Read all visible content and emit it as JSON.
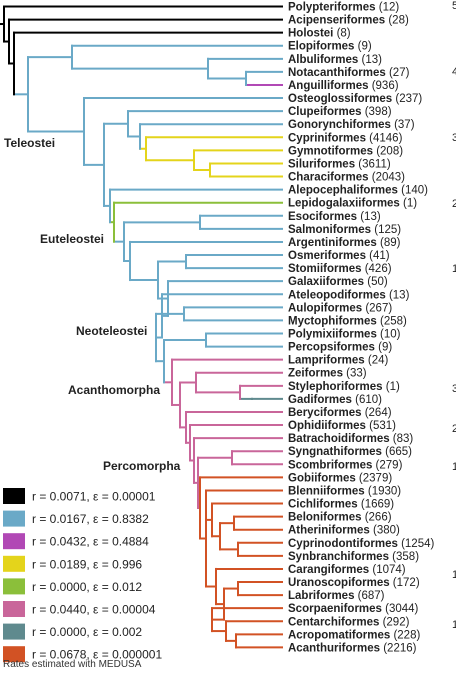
{
  "colors": {
    "black": "#000000",
    "blue": "#6aa9c7",
    "magenta": "#b148b5",
    "yellow": "#e4d41b",
    "green": "#8bbf3a",
    "pink": "#c9669a",
    "gray": "#5f8a8e",
    "orange": "#d25224"
  },
  "legend": [
    {
      "label": "r = 0.0071, ε = 0.00001",
      "color": "#000000"
    },
    {
      "label": "r = 0.0167, ε = 0.8382",
      "color": "#6aa9c7"
    },
    {
      "label": "r = 0.0432, ε = 0.4884",
      "color": "#b148b5"
    },
    {
      "label": "r = 0.0189, ε = 0.996",
      "color": "#e4d41b"
    },
    {
      "label": "r = 0.0000, ε = 0.012",
      "color": "#8bbf3a"
    },
    {
      "label": "r = 0.0440, ε = 0.00004",
      "color": "#c9669a"
    },
    {
      "label": "r = 0.0000, ε = 0.002",
      "color": "#5f8a8e"
    },
    {
      "label": "r = 0.0678, ε = 0.000001",
      "color": "#d25224"
    }
  ],
  "caption": "Rates estimated with MEDUSA",
  "clades": {
    "teleostei": "Teleostei",
    "euteleostei": "Euteleostei",
    "neoteleostei": "Neoteleostei",
    "acanthomorpha": "Acanthomorpha",
    "percomorpha": "Percomorpha"
  },
  "edge_marks": [
    "5",
    "4",
    "3",
    "2",
    "1",
    "3",
    "2",
    "1",
    "1",
    "1"
  ],
  "taxa": [
    {
      "name": "Polypteriformes",
      "count": "(12)"
    },
    {
      "name": "Acipenseriformes",
      "count": "(28)"
    },
    {
      "name": "Holostei",
      "count": "(8)"
    },
    {
      "name": "Elopiformes",
      "count": "(9)"
    },
    {
      "name": "Albuliformes",
      "count": "(13)"
    },
    {
      "name": "Notacanthiformes",
      "count": "(27)"
    },
    {
      "name": "Anguilliformes",
      "count": "(936)"
    },
    {
      "name": "Osteoglossiformes",
      "count": "(237)"
    },
    {
      "name": "Clupeiformes",
      "count": "(398)"
    },
    {
      "name": "Gonorynchiformes",
      "count": "(37)"
    },
    {
      "name": "Cypriniformes",
      "count": "(4146)"
    },
    {
      "name": "Gymnotiformes",
      "count": "(208)"
    },
    {
      "name": "Siluriformes",
      "count": "(3611)"
    },
    {
      "name": "Characiformes",
      "count": "(2043)"
    },
    {
      "name": "Alepocephaliformes",
      "count": "(140)"
    },
    {
      "name": "Lepidogalaxiiformes",
      "count": "(1)"
    },
    {
      "name": "Esociformes",
      "count": "(13)"
    },
    {
      "name": "Salmoniformes",
      "count": "(125)"
    },
    {
      "name": "Argentiniformes",
      "count": "(89)"
    },
    {
      "name": "Osmeriformes",
      "count": "(41)"
    },
    {
      "name": "Stomiiformes",
      "count": "(426)"
    },
    {
      "name": "Galaxiiformes",
      "count": "(50)"
    },
    {
      "name": "Ateleopodiformes",
      "count": "(13)"
    },
    {
      "name": "Aulopiformes",
      "count": "(267)"
    },
    {
      "name": "Myctophiformes",
      "count": "(258)"
    },
    {
      "name": "Polymixiiformes",
      "count": "(10)"
    },
    {
      "name": "Percopsiformes",
      "count": "(9)"
    },
    {
      "name": "Lampriformes",
      "count": "(24)"
    },
    {
      "name": "Zeiformes",
      "count": "(33)"
    },
    {
      "name": "Stylephoriformes",
      "count": "(1)"
    },
    {
      "name": "Gadiformes",
      "count": "(610)"
    },
    {
      "name": "Beryciformes",
      "count": "(264)"
    },
    {
      "name": "Ophidiiformes",
      "count": "(531)"
    },
    {
      "name": "Batrachoidiformes",
      "count": "(83)"
    },
    {
      "name": "Syngnathiformes",
      "count": "(665)"
    },
    {
      "name": "Scombriformes",
      "count": "(279)"
    },
    {
      "name": "Gobiiformes",
      "count": "(2379)"
    },
    {
      "name": "Blenniiformes",
      "count": "(1930)"
    },
    {
      "name": "Cichliformes",
      "count": "(1669)"
    },
    {
      "name": "Beloniformes",
      "count": "(266)"
    },
    {
      "name": "Atheriniformes",
      "count": "(380)"
    },
    {
      "name": "Cyprinodontiformes",
      "count": "(1254)"
    },
    {
      "name": "Synbranchiformes",
      "count": "(358)"
    },
    {
      "name": "Carangiformes",
      "count": "(1074)"
    },
    {
      "name": "Uranoscopiformes",
      "count": "(172)"
    },
    {
      "name": "Labriformes",
      "count": "(687)"
    },
    {
      "name": "Scorpaeniformes",
      "count": "(3044)"
    },
    {
      "name": "Centarchiformes",
      "count": "(292)"
    },
    {
      "name": "Acropomatiformes",
      "count": "(228)"
    },
    {
      "name": "Acanthuriformes",
      "count": "(2216)"
    }
  ]
}
